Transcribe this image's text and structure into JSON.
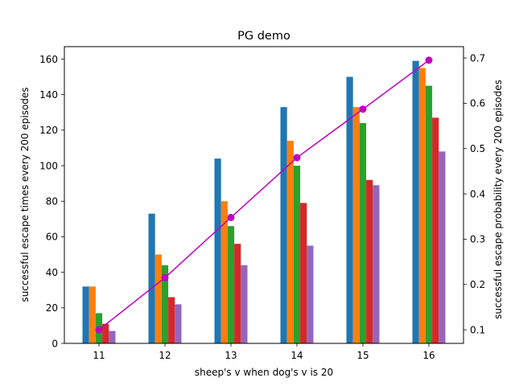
{
  "chart_data": {
    "type": "bar",
    "title": "PG demo",
    "xlabel": "sheep's v when dog's v is 20",
    "ylabel": "successful escape times every 200 episodes",
    "ylabel_right": "successful escape probability every 200 episodes",
    "categories": [
      "11",
      "12",
      "13",
      "14",
      "15",
      "16"
    ],
    "ylim": [
      0,
      167
    ],
    "ylim_right": [
      0.07,
      0.725
    ],
    "yticks": [
      "0",
      "20",
      "40",
      "60",
      "80",
      "100",
      "120",
      "140",
      "160"
    ],
    "yticks_right": [
      "0.1",
      "0.2",
      "0.3",
      "0.4",
      "0.5",
      "0.6",
      "0.7"
    ],
    "grid": false,
    "series": [
      {
        "values": [
          32,
          73,
          104,
          133,
          150,
          159
        ],
        "color": "#1f77b4"
      },
      {
        "values": [
          32,
          50,
          80,
          114,
          133,
          155
        ],
        "color": "#ff7f0e"
      },
      {
        "values": [
          17,
          44,
          66,
          100,
          124,
          145
        ],
        "color": "#2ca02c"
      },
      {
        "values": [
          11,
          26,
          56,
          79,
          92,
          127
        ],
        "color": "#d62728"
      },
      {
        "values": [
          7,
          22,
          44,
          55,
          89,
          108
        ],
        "color": "#9467bd"
      }
    ],
    "line_series": {
      "axis": "right",
      "values": [
        0.1,
        0.215,
        0.348,
        0.48,
        0.587,
        0.695
      ],
      "color": "#bf00bf",
      "marker": "circle"
    }
  }
}
